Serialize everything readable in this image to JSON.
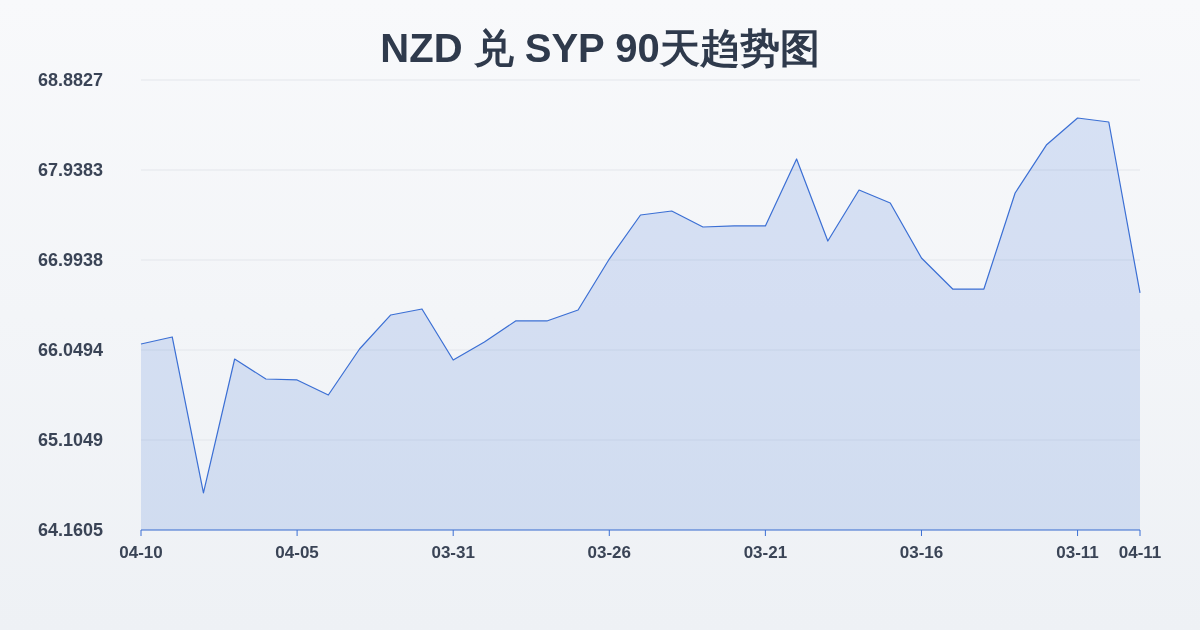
{
  "chart_data": {
    "type": "area",
    "title": "NZD 兑 SYP 90天趋势图",
    "categories": [
      "04-10",
      null,
      null,
      null,
      null,
      "04-05",
      null,
      null,
      null,
      null,
      "03-31",
      null,
      null,
      null,
      null,
      "03-26",
      null,
      null,
      null,
      null,
      "03-21",
      null,
      null,
      null,
      null,
      "03-16",
      null,
      null,
      null,
      null,
      "03-11",
      null,
      "04-11"
    ],
    "series": [
      {
        "color": "#3b6fd4",
        "values": [
          66.112,
          66.186,
          64.549,
          65.955,
          65.745,
          65.735,
          65.577,
          66.06,
          66.417,
          66.48,
          65.944,
          66.133,
          66.354,
          66.354,
          66.469,
          67.004,
          67.466,
          67.508,
          67.34,
          67.351,
          67.351,
          68.054,
          67.193,
          67.728,
          67.592,
          67.015,
          66.689,
          66.689,
          67.697,
          68.2,
          68.484,
          68.442,
          66.648
        ]
      }
    ],
    "ylim": [
      64.1605,
      68.8827
    ],
    "yticks": [
      64.1605,
      65.1049,
      66.0494,
      66.9938,
      67.9383,
      68.8827
    ],
    "grid": "y"
  }
}
